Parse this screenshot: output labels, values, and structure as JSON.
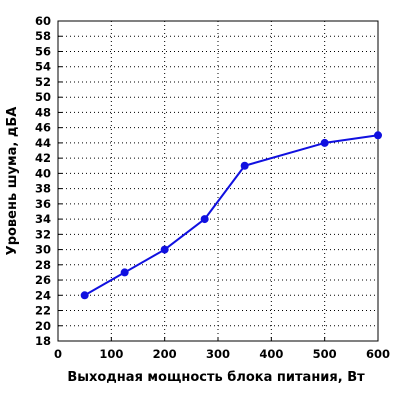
{
  "chart_data": {
    "type": "line",
    "title": "",
    "xlabel": "Выходная мощность блока питания, Вт",
    "ylabel": "Уровень шума, дБА",
    "xlim": [
      0,
      600
    ],
    "ylim": [
      18,
      60
    ],
    "x_ticks": [
      0,
      100,
      200,
      300,
      400,
      500,
      600
    ],
    "y_ticks": [
      18,
      20,
      22,
      24,
      26,
      28,
      30,
      32,
      34,
      36,
      38,
      40,
      42,
      44,
      46,
      48,
      50,
      52,
      54,
      56,
      58,
      60
    ],
    "grid": true,
    "legend": "none",
    "series": [
      {
        "color": "#1010e0",
        "x": [
          50,
          125,
          200,
          275,
          350,
          500,
          600
        ],
        "y": [
          24,
          27,
          30,
          34,
          41,
          44,
          45
        ]
      }
    ]
  }
}
